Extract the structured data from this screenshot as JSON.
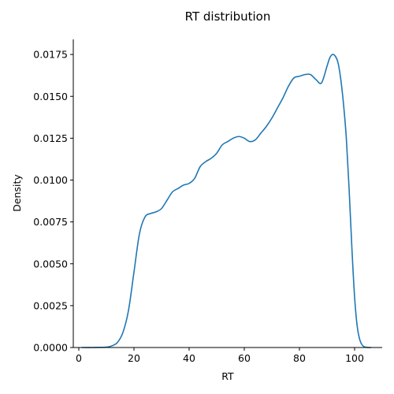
{
  "chart_data": {
    "type": "line",
    "title": "RT distribution",
    "xlabel": "RT",
    "ylabel": "Density",
    "xlim": [
      -2,
      110
    ],
    "ylim": [
      0,
      0.0184
    ],
    "grid": false,
    "x_ticks": [
      0,
      20,
      40,
      60,
      80,
      100
    ],
    "x_tick_labels": [
      "0",
      "20",
      "40",
      "60",
      "80",
      "100"
    ],
    "y_ticks": [
      0,
      0.0025,
      0.005,
      0.0075,
      0.01,
      0.0125,
      0.015,
      0.0175
    ],
    "y_tick_labels": [
      "0.0000",
      "0.0025",
      "0.0050",
      "0.0075",
      "0.0100",
      "0.0125",
      "0.0150",
      "0.0175"
    ],
    "series": [
      {
        "color": "#1f77b4",
        "x": [
          1,
          5,
          10,
          12,
          14,
          16,
          18,
          20,
          22,
          24,
          26,
          28,
          30,
          32,
          34,
          36,
          38,
          40,
          42,
          44,
          46,
          48,
          50,
          52,
          54,
          56,
          58,
          60,
          62,
          64,
          66,
          68,
          70,
          72,
          74,
          76,
          78,
          80,
          82,
          84,
          86,
          88,
          90,
          91,
          92,
          93,
          94,
          95,
          96,
          97,
          98,
          99,
          100,
          101,
          102,
          103,
          104,
          105,
          106
        ],
        "y": [
          0.0,
          0.0,
          2e-05,
          0.0001,
          0.0003,
          0.0009,
          0.0022,
          0.0045,
          0.0068,
          0.0078,
          0.008,
          0.0081,
          0.0083,
          0.0088,
          0.0093,
          0.0095,
          0.0097,
          0.0098,
          0.0101,
          0.0108,
          0.0111,
          0.0113,
          0.0116,
          0.0121,
          0.0123,
          0.0125,
          0.0126,
          0.0125,
          0.0123,
          0.0124,
          0.0128,
          0.0132,
          0.0137,
          0.0143,
          0.0149,
          0.0156,
          0.0161,
          0.0162,
          0.0163,
          0.0163,
          0.016,
          0.0158,
          0.0168,
          0.0173,
          0.0175,
          0.0174,
          0.017,
          0.016,
          0.0145,
          0.0125,
          0.0095,
          0.006,
          0.003,
          0.0012,
          0.0004,
          0.0001,
          2e-05,
          0.0,
          0.0
        ]
      }
    ]
  }
}
